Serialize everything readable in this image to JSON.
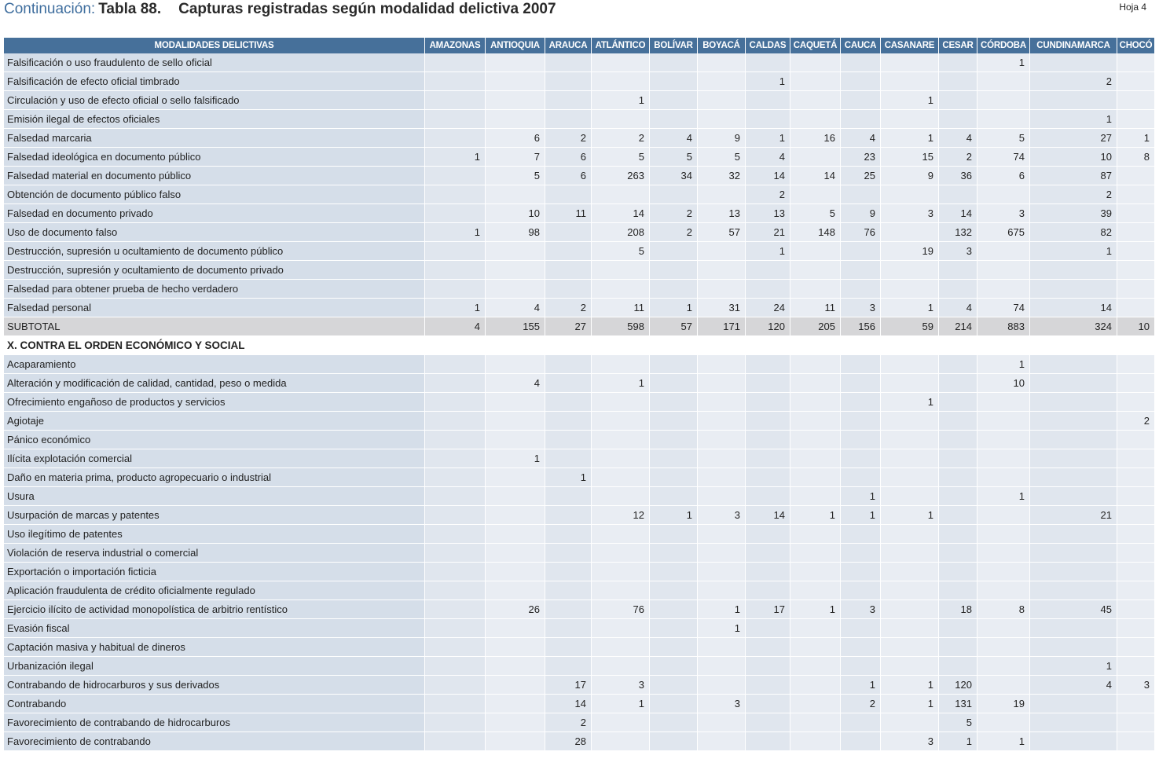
{
  "header": {
    "continuation": "Continuación:",
    "table_number": "Tabla 88.",
    "title": "Capturas registradas según modalidad delictiva 2007",
    "sheet": "Hoja 4"
  },
  "table": {
    "columns": [
      "MODALIDADES DELICTIVAS",
      "AMAZONAS",
      "ANTIOQUIA",
      "ARAUCA",
      "ATLÁNTICO",
      "BOLÍVAR",
      "BOYACÁ",
      "CALDAS",
      "CAQUETÁ",
      "CAUCA",
      "CASANARE",
      "CESAR",
      "CÓRDOBA",
      "CUNDINAMARCA",
      "CHOCÓ"
    ],
    "groups": [
      {
        "rows": [
          {
            "label": "Falsificación o uso fraudulento de sello oficial",
            "values": [
              null,
              null,
              null,
              null,
              null,
              null,
              null,
              null,
              null,
              null,
              null,
              1,
              null,
              null
            ]
          },
          {
            "label": "Falsificación de efecto oficial timbrado",
            "values": [
              null,
              null,
              null,
              null,
              null,
              null,
              1,
              null,
              null,
              null,
              null,
              null,
              2,
              null
            ]
          },
          {
            "label": "Circulación y uso de efecto oficial o sello falsificado",
            "values": [
              null,
              null,
              null,
              1,
              null,
              null,
              null,
              null,
              null,
              1,
              null,
              null,
              null,
              null
            ]
          },
          {
            "label": "Emisión ilegal de efectos oficiales",
            "values": [
              null,
              null,
              null,
              null,
              null,
              null,
              null,
              null,
              null,
              null,
              null,
              null,
              1,
              null
            ]
          },
          {
            "label": "Falsedad marcaria",
            "values": [
              null,
              6,
              2,
              2,
              4,
              9,
              1,
              16,
              4,
              1,
              4,
              5,
              27,
              1
            ]
          },
          {
            "label": "Falsedad ideológica en documento público",
            "values": [
              1,
              7,
              6,
              5,
              5,
              5,
              4,
              null,
              23,
              15,
              2,
              74,
              10,
              8
            ]
          },
          {
            "label": "Falsedad material en documento público",
            "values": [
              null,
              5,
              6,
              263,
              34,
              32,
              14,
              14,
              25,
              9,
              36,
              6,
              87,
              null
            ]
          },
          {
            "label": "Obtención de documento público falso",
            "values": [
              null,
              null,
              null,
              null,
              null,
              null,
              2,
              null,
              null,
              null,
              null,
              null,
              2,
              null
            ]
          },
          {
            "label": "Falsedad en documento privado",
            "values": [
              null,
              10,
              11,
              14,
              2,
              13,
              13,
              5,
              9,
              3,
              14,
              3,
              39,
              null
            ]
          },
          {
            "label": "Uso de documento falso",
            "values": [
              1,
              98,
              null,
              208,
              2,
              57,
              21,
              148,
              76,
              null,
              132,
              675,
              82,
              null
            ]
          },
          {
            "label": "Destrucción, supresión u ocultamiento de documento público",
            "values": [
              null,
              null,
              null,
              5,
              null,
              null,
              1,
              null,
              null,
              19,
              3,
              null,
              1,
              null
            ]
          },
          {
            "label": "Destrucción, supresión y ocultamiento de documento privado",
            "values": [
              null,
              null,
              null,
              null,
              null,
              null,
              null,
              null,
              null,
              null,
              null,
              null,
              null,
              null
            ]
          },
          {
            "label": "Falsedad para obtener prueba de hecho verdadero",
            "values": [
              null,
              null,
              null,
              null,
              null,
              null,
              null,
              null,
              null,
              null,
              null,
              null,
              null,
              null
            ]
          },
          {
            "label": "Falsedad personal",
            "values": [
              1,
              4,
              2,
              11,
              1,
              31,
              24,
              11,
              3,
              1,
              4,
              74,
              14,
              null
            ]
          }
        ],
        "subtotal": {
          "label": "SUBTOTAL",
          "values": [
            4,
            155,
            27,
            598,
            57,
            171,
            120,
            205,
            156,
            59,
            214,
            883,
            324,
            10
          ]
        }
      },
      {
        "section": "X. CONTRA EL ORDEN ECONÓMICO Y SOCIAL",
        "rows": [
          {
            "label": "Acaparamiento",
            "values": [
              null,
              null,
              null,
              null,
              null,
              null,
              null,
              null,
              null,
              null,
              null,
              1,
              null,
              null
            ]
          },
          {
            "label": "Alteración y modificación de calidad, cantidad, peso o medida",
            "values": [
              null,
              4,
              null,
              1,
              null,
              null,
              null,
              null,
              null,
              null,
              null,
              10,
              null,
              null
            ]
          },
          {
            "label": "Ofrecimiento engañoso de productos y servicios",
            "values": [
              null,
              null,
              null,
              null,
              null,
              null,
              null,
              null,
              null,
              1,
              null,
              null,
              null,
              null
            ]
          },
          {
            "label": "Agiotaje",
            "values": [
              null,
              null,
              null,
              null,
              null,
              null,
              null,
              null,
              null,
              null,
              null,
              null,
              null,
              2
            ]
          },
          {
            "label": "Pánico económico",
            "values": [
              null,
              null,
              null,
              null,
              null,
              null,
              null,
              null,
              null,
              null,
              null,
              null,
              null,
              null
            ]
          },
          {
            "label": "Ilícita explotación comercial",
            "values": [
              null,
              1,
              null,
              null,
              null,
              null,
              null,
              null,
              null,
              null,
              null,
              null,
              null,
              null
            ]
          },
          {
            "label": "Daño en materia prima, producto agropecuario o industrial",
            "values": [
              null,
              null,
              1,
              null,
              null,
              null,
              null,
              null,
              null,
              null,
              null,
              null,
              null,
              null
            ]
          },
          {
            "label": "Usura",
            "values": [
              null,
              null,
              null,
              null,
              null,
              null,
              null,
              null,
              1,
              null,
              null,
              1,
              null,
              null
            ]
          },
          {
            "label": "Usurpación de marcas y patentes",
            "values": [
              null,
              null,
              null,
              12,
              1,
              3,
              14,
              1,
              1,
              1,
              null,
              null,
              21,
              null
            ]
          },
          {
            "label": "Uso ilegítimo de patentes",
            "values": [
              null,
              null,
              null,
              null,
              null,
              null,
              null,
              null,
              null,
              null,
              null,
              null,
              null,
              null
            ]
          },
          {
            "label": "Violación de reserva industrial o comercial",
            "values": [
              null,
              null,
              null,
              null,
              null,
              null,
              null,
              null,
              null,
              null,
              null,
              null,
              null,
              null
            ]
          },
          {
            "label": "Exportación o importación ficticia",
            "values": [
              null,
              null,
              null,
              null,
              null,
              null,
              null,
              null,
              null,
              null,
              null,
              null,
              null,
              null
            ]
          },
          {
            "label": "Aplicación fraudulenta de crédito oficialmente regulado",
            "values": [
              null,
              null,
              null,
              null,
              null,
              null,
              null,
              null,
              null,
              null,
              null,
              null,
              null,
              null
            ]
          },
          {
            "label": "Ejercicio ilícito de actividad monopolística de arbitrio rentístico",
            "values": [
              null,
              26,
              null,
              76,
              null,
              1,
              17,
              1,
              3,
              null,
              18,
              8,
              45,
              null
            ]
          },
          {
            "label": "Evasión fiscal",
            "values": [
              null,
              null,
              null,
              null,
              null,
              1,
              null,
              null,
              null,
              null,
              null,
              null,
              null,
              null
            ]
          },
          {
            "label": "Captación masiva y habitual de dineros",
            "values": [
              null,
              null,
              null,
              null,
              null,
              null,
              null,
              null,
              null,
              null,
              null,
              null,
              null,
              null
            ]
          },
          {
            "label": "Urbanización ilegal",
            "values": [
              null,
              null,
              null,
              null,
              null,
              null,
              null,
              null,
              null,
              null,
              null,
              null,
              1,
              null
            ]
          },
          {
            "label": "Contrabando de hidrocarburos y sus derivados",
            "values": [
              null,
              null,
              17,
              3,
              null,
              null,
              null,
              null,
              1,
              1,
              120,
              null,
              4,
              3
            ]
          },
          {
            "label": "Contrabando",
            "values": [
              null,
              null,
              14,
              1,
              null,
              3,
              null,
              null,
              2,
              1,
              131,
              19,
              null,
              null
            ]
          },
          {
            "label": "Favorecimiento de contrabando de hidrocarburos",
            "values": [
              null,
              null,
              2,
              null,
              null,
              null,
              null,
              null,
              null,
              null,
              5,
              null,
              null,
              null
            ]
          },
          {
            "label": "Favorecimiento de contrabando",
            "values": [
              null,
              null,
              28,
              null,
              null,
              null,
              null,
              null,
              null,
              3,
              1,
              1,
              null,
              null
            ]
          }
        ]
      }
    ]
  }
}
